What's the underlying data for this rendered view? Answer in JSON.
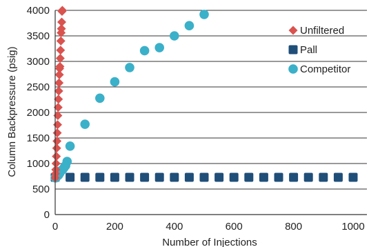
{
  "chart_data": {
    "type": "scatter",
    "xlabel": "Number of Injections",
    "ylabel": "Column Backpressure (psig)",
    "xlim": [
      0,
      1000
    ],
    "ylim": [
      0,
      4000
    ],
    "x_ticks": [
      "0",
      "200",
      "400",
      "600",
      "800",
      "1000"
    ],
    "y_ticks": [
      "0",
      "500",
      "1000",
      "1500",
      "2000",
      "2500",
      "3000",
      "3500",
      "4000"
    ],
    "grid": "horizontal",
    "legend_position": "top-right",
    "series": [
      {
        "name": "Unfiltered",
        "marker": "diamond",
        "color": "#d9534f",
        "x": [
          0,
          1,
          2,
          3,
          4,
          5,
          6,
          7,
          8,
          9,
          10,
          11,
          12,
          13,
          14,
          15,
          16,
          17,
          18,
          19,
          20,
          21,
          22,
          23,
          24
        ],
        "y": [
          720,
          800,
          880,
          1000,
          1140,
          1300,
          1440,
          1600,
          1760,
          1940,
          2100,
          2260,
          2420,
          2580,
          2740,
          2860,
          2900,
          3060,
          3220,
          3400,
          3560,
          3640,
          3770,
          3980,
          4000
        ]
      },
      {
        "name": "Pall",
        "marker": "square",
        "color": "#1f4e79",
        "x": [
          0,
          50,
          100,
          150,
          200,
          250,
          300,
          350,
          400,
          450,
          500,
          550,
          600,
          650,
          700,
          750,
          800,
          850,
          900,
          950,
          1000
        ],
        "y": [
          730,
          730,
          730,
          730,
          730,
          730,
          730,
          730,
          730,
          730,
          730,
          730,
          730,
          730,
          730,
          730,
          730,
          730,
          730,
          730,
          730
        ]
      },
      {
        "name": "Competitor",
        "marker": "circle",
        "color": "#3bb0c9",
        "x": [
          0,
          2,
          4,
          6,
          8,
          10,
          12,
          14,
          16,
          18,
          20,
          25,
          30,
          35,
          40,
          50,
          100,
          150,
          200,
          250,
          300,
          350,
          400,
          450,
          500
        ],
        "y": [
          720,
          720,
          740,
          750,
          760,
          770,
          780,
          800,
          820,
          840,
          860,
          880,
          920,
          960,
          1040,
          1340,
          1770,
          2280,
          2600,
          2880,
          3210,
          3270,
          3500,
          3700,
          3920
        ]
      }
    ]
  }
}
